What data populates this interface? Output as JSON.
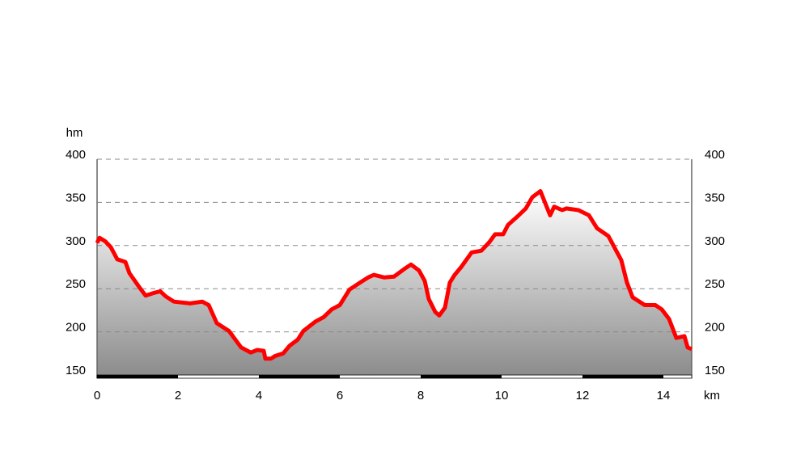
{
  "chart_data": {
    "type": "area",
    "y_label": "hm",
    "x_label": "km",
    "x": [
      0,
      0.06,
      0.2,
      0.34,
      0.5,
      0.7,
      0.8,
      1.04,
      1.2,
      1.4,
      1.56,
      1.7,
      1.9,
      2.3,
      2.6,
      2.76,
      2.96,
      3.26,
      3.56,
      3.8,
      3.96,
      4.12,
      4.16,
      4.3,
      4.4,
      4.6,
      4.76,
      4.96,
      5.1,
      5.4,
      5.6,
      5.8,
      6.0,
      6.24,
      6.5,
      6.7,
      6.84,
      7.1,
      7.34,
      7.6,
      7.76,
      7.96,
      8.1,
      8.2,
      8.36,
      8.46,
      8.6,
      8.72,
      8.84,
      9.0,
      9.26,
      9.5,
      9.7,
      9.84,
      10.04,
      10.16,
      10.4,
      10.6,
      10.76,
      10.96,
      11.2,
      11.3,
      11.5,
      11.6,
      11.9,
      12.16,
      12.36,
      12.64,
      12.96,
      13.1,
      13.24,
      13.54,
      13.8,
      13.96,
      14.14,
      14.32,
      14.52,
      14.6,
      14.7
    ],
    "values": [
      303,
      309,
      305,
      298,
      284,
      281,
      268,
      252,
      242,
      245,
      247,
      241,
      235,
      233,
      235,
      231,
      210,
      201,
      182,
      176,
      179,
      178,
      169,
      169,
      172,
      175,
      184,
      191,
      201,
      212,
      217,
      226,
      231,
      249,
      257,
      263,
      266,
      263,
      264,
      273,
      278,
      271,
      259,
      238,
      223,
      219,
      228,
      257,
      266,
      275,
      292,
      294,
      304,
      313,
      313,
      324,
      334,
      343,
      356,
      363,
      335,
      345,
      341,
      343,
      341,
      335,
      320,
      311,
      283,
      257,
      240,
      231,
      231,
      226,
      215,
      193,
      195,
      182,
      180
    ],
    "color": "#ff0000",
    "xlim": [
      0,
      14.7
    ],
    "xticks": [
      0,
      2,
      4,
      6,
      8,
      10,
      12,
      14
    ],
    "ylim": [
      150,
      400
    ],
    "yticks": [
      150,
      200,
      250,
      300,
      350,
      400
    ],
    "grid": true
  }
}
